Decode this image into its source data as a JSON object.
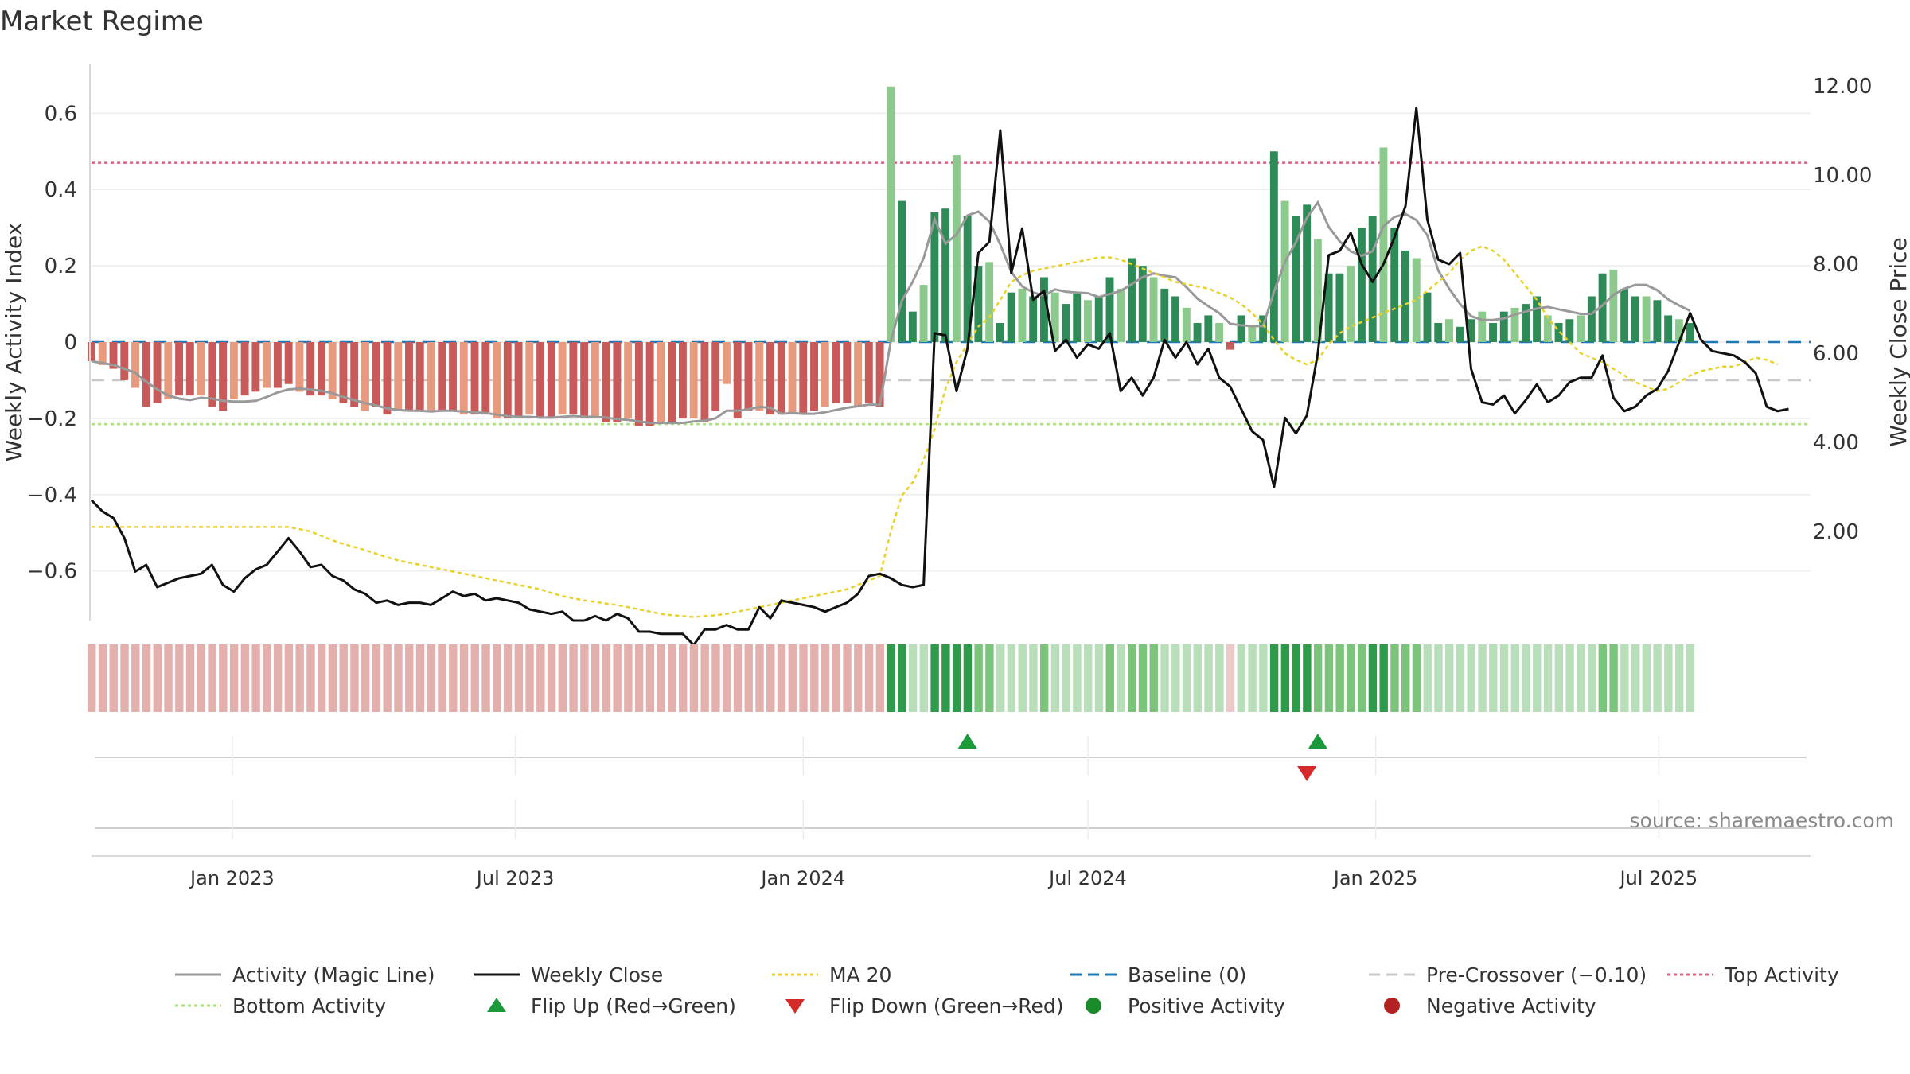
{
  "title": "Market Regime",
  "source": "source: sharemaestro.com",
  "colors": {
    "magic": "#999999",
    "close": "#111111",
    "ma": "#e8d228",
    "baseline": "#1f77b4",
    "precross": "#c8c8c8",
    "top": "#e06080",
    "bottom": "#a8e07a",
    "pos_dark": "#2e8b57",
    "pos_light": "#8cc98c",
    "neg_dark": "#c85a5a",
    "neg_light": "#e89a7e",
    "flip_up": "#1a9a3a",
    "flip_down": "#d42a2a",
    "dot_pos": "#1a8a2a",
    "dot_neg": "#b22222"
  },
  "legend": [
    {
      "label": "Activity (Magic Line)",
      "kind": "line",
      "color": "#999999",
      "dash": ""
    },
    {
      "label": "Weekly Close",
      "kind": "line",
      "color": "#111111",
      "dash": ""
    },
    {
      "label": "MA 20",
      "kind": "line",
      "color": "#e8d228",
      "dash": "4,4"
    },
    {
      "label": "Baseline (0)",
      "kind": "line",
      "color": "#1f77b4",
      "dash": "14,8"
    },
    {
      "label": "Pre-Crossover (−0.10)",
      "kind": "line",
      "color": "#c8c8c8",
      "dash": "14,8"
    },
    {
      "label": "Top Activity",
      "kind": "line",
      "color": "#e06080",
      "dash": "4,4"
    },
    {
      "label": "Bottom Activity",
      "kind": "line",
      "color": "#a8e07a",
      "dash": "4,4"
    },
    {
      "label": "Flip Up (Red→Green)",
      "kind": "tri-up",
      "color": "#1a9a3a",
      "dash": ""
    },
    {
      "label": "Flip Down (Green→Red)",
      "kind": "tri-down",
      "color": "#d42a2a",
      "dash": ""
    },
    {
      "label": "Positive Activity",
      "kind": "dot",
      "color": "#1a8a2a",
      "dash": ""
    },
    {
      "label": "Negative Activity",
      "kind": "dot",
      "color": "#b22222",
      "dash": ""
    }
  ],
  "chart_data": {
    "type": "bar",
    "title": "Market Regime",
    "ylabel": "Weekly Activity Index",
    "y2label": "Weekly Close Price",
    "ylim": [
      -0.73,
      0.73
    ],
    "y2lim": [
      0,
      12.5
    ],
    "yticks": [
      0.6,
      0.4,
      0.2,
      0,
      -0.2,
      -0.4,
      -0.6
    ],
    "ytick_labels": [
      "0.6",
      "0.4",
      "0.2",
      "0",
      "−0.2",
      "−0.4",
      "−0.6"
    ],
    "y2ticks": [
      12,
      10,
      8,
      6,
      4,
      2
    ],
    "y2tick_labels": [
      "12.00",
      "10.00",
      "8.00",
      "6.00",
      "4.00",
      "2.00"
    ],
    "x_start": "2022-10-03",
    "x_end": "2025-10-06",
    "xticks": [
      {
        "date": "2023-01-01",
        "label": "Jan 2023"
      },
      {
        "date": "2023-07-01",
        "label": "Jul 2023"
      },
      {
        "date": "2024-01-01",
        "label": "Jan 2024"
      },
      {
        "date": "2024-07-01",
        "label": "Jul 2024"
      },
      {
        "date": "2025-01-01",
        "label": "Jan 2025"
      },
      {
        "date": "2025-07-01",
        "label": "Jul 2025"
      }
    ],
    "reference_lines": {
      "top": 0.47,
      "bottom": -0.215,
      "baseline": 0,
      "precross": -0.1
    },
    "flip_up": [
      {
        "date": "2024-04-15",
        "label": "Flip Up (Red→Green)"
      },
      {
        "date": "2024-11-25",
        "label": "Flip Up (Red→Green)"
      }
    ],
    "flip_down": [
      {
        "date": "2024-11-18",
        "label": "Flip Down (Green→Red)"
      }
    ],
    "series": [
      {
        "name": "Activity (Magic Line)",
        "type": "bar",
        "x_start": "2022-10-03",
        "interval_days": 7,
        "values": [
          -0.05,
          -0.06,
          -0.07,
          -0.1,
          -0.12,
          -0.17,
          -0.16,
          -0.15,
          -0.14,
          -0.14,
          -0.14,
          -0.17,
          -0.18,
          -0.15,
          -0.14,
          -0.13,
          -0.12,
          -0.12,
          -0.11,
          -0.13,
          -0.14,
          -0.14,
          -0.15,
          -0.16,
          -0.17,
          -0.18,
          -0.17,
          -0.19,
          -0.18,
          -0.18,
          -0.18,
          -0.18,
          -0.18,
          -0.18,
          -0.19,
          -0.19,
          -0.19,
          -0.2,
          -0.2,
          -0.2,
          -0.19,
          -0.2,
          -0.2,
          -0.19,
          -0.19,
          -0.2,
          -0.2,
          -0.21,
          -0.21,
          -0.2,
          -0.22,
          -0.22,
          -0.21,
          -0.21,
          -0.2,
          -0.2,
          -0.21,
          -0.18,
          -0.11,
          -0.2,
          -0.18,
          -0.18,
          -0.19,
          -0.19,
          -0.19,
          -0.19,
          -0.18,
          -0.17,
          -0.16,
          -0.16,
          -0.17,
          -0.16,
          -0.17,
          0.67,
          0.37,
          0.08,
          0.15,
          0.34,
          0.35,
          0.49,
          0.33,
          0.2,
          0.21,
          0.05,
          0.13,
          0.14,
          0.12,
          0.17,
          0.13,
          0.1,
          0.13,
          0.11,
          0.12,
          0.17,
          0.14,
          0.22,
          0.2,
          0.17,
          0.14,
          0.12,
          0.09,
          0.05,
          0.07,
          0.05,
          -0.02,
          0.07,
          0.04,
          0.07,
          0.5,
          0.37,
          0.33,
          0.36,
          0.27,
          0.18,
          0.18,
          0.2,
          0.3,
          0.33,
          0.51,
          0.3,
          0.24,
          0.22,
          0.13,
          0.05,
          0.06,
          0.04,
          0.06,
          0.08,
          0.05,
          0.08,
          0.09,
          0.1,
          0.12,
          0.07,
          0.05,
          0.06,
          0.07,
          0.12,
          0.18,
          0.19,
          0.14,
          0.12,
          0.12,
          0.11,
          0.07,
          0.06,
          0.05
        ]
      },
      {
        "name": "Weekly Close",
        "type": "line",
        "x_start": "2022-10-03",
        "interval_days": 7,
        "values": [
          2.7,
          2.45,
          2.3,
          1.85,
          1.1,
          1.25,
          0.75,
          0.85,
          0.95,
          1.0,
          1.05,
          1.25,
          0.8,
          0.65,
          0.95,
          1.15,
          1.25,
          1.55,
          1.85,
          1.55,
          1.2,
          1.25,
          1.0,
          0.9,
          0.7,
          0.6,
          0.4,
          0.45,
          0.35,
          0.4,
          0.4,
          0.35,
          0.5,
          0.65,
          0.55,
          0.6,
          0.45,
          0.5,
          0.45,
          0.4,
          0.25,
          0.2,
          0.15,
          0.2,
          0.0,
          0.0,
          0.1,
          0.0,
          0.15,
          0.05,
          -0.25,
          -0.25,
          -0.3,
          -0.3,
          -0.3,
          -0.55,
          -0.2,
          -0.2,
          -0.1,
          -0.2,
          -0.2,
          0.3,
          0.05,
          0.45,
          0.4,
          0.35,
          0.3,
          0.2,
          0.3,
          0.4,
          0.6,
          1.0,
          1.05,
          0.95,
          0.8,
          0.75,
          0.8,
          6.45,
          6.4,
          5.15,
          6.1,
          8.25,
          8.5,
          11.0,
          7.8,
          8.8,
          7.2,
          7.4,
          6.05,
          6.3,
          5.9,
          6.2,
          6.1,
          6.45,
          5.15,
          5.45,
          5.05,
          5.45,
          6.3,
          5.9,
          6.25,
          5.75,
          6.1,
          5.45,
          5.25,
          4.75,
          4.25,
          4.05,
          3.0,
          4.55,
          4.2,
          4.6,
          6.0,
          8.2,
          8.3,
          8.7,
          8.0,
          7.6,
          8.0,
          8.6,
          9.3,
          11.5,
          9.0,
          8.1,
          8.0,
          8.25,
          5.65,
          4.9,
          4.85,
          5.05,
          4.65,
          4.95,
          5.3,
          4.9,
          5.05,
          5.35,
          5.45,
          5.45,
          5.95,
          5.0,
          4.7,
          4.8,
          5.05,
          5.2,
          5.6,
          6.25,
          6.9,
          6.3,
          6.05,
          6.0,
          5.95,
          5.8,
          5.55,
          4.8,
          4.7,
          4.75
        ]
      },
      {
        "name": "MA 20",
        "type": "line",
        "x_start": "2022-10-03",
        "interval_days": 7,
        "values": [
          2.1,
          2.1,
          2.1,
          2.1,
          2.1,
          2.1,
          2.1,
          2.1,
          2.1,
          2.1,
          2.1,
          2.1,
          2.1,
          2.1,
          2.1,
          2.1,
          2.1,
          2.1,
          2.1,
          2.05,
          2.0,
          1.9,
          1.8,
          1.72,
          1.65,
          1.58,
          1.5,
          1.42,
          1.35,
          1.3,
          1.25,
          1.2,
          1.15,
          1.1,
          1.05,
          1.0,
          0.95,
          0.9,
          0.85,
          0.8,
          0.75,
          0.7,
          0.62,
          0.55,
          0.5,
          0.45,
          0.42,
          0.38,
          0.35,
          0.3,
          0.25,
          0.2,
          0.15,
          0.12,
          0.1,
          0.08,
          0.1,
          0.12,
          0.15,
          0.2,
          0.25,
          0.3,
          0.35,
          0.4,
          0.45,
          0.5,
          0.55,
          0.6,
          0.65,
          0.7,
          0.8,
          0.9,
          1.0,
          2.0,
          2.8,
          3.1,
          3.6,
          4.3,
          5.2,
          5.8,
          6.2,
          6.6,
          6.8,
          7.2,
          7.6,
          7.75,
          7.85,
          7.9,
          7.95,
          8.0,
          8.05,
          8.1,
          8.15,
          8.15,
          8.1,
          8.0,
          7.9,
          7.8,
          7.7,
          7.6,
          7.55,
          7.5,
          7.45,
          7.35,
          7.25,
          7.1,
          6.9,
          6.65,
          6.3,
          6.0,
          5.85,
          5.75,
          5.85,
          6.2,
          6.45,
          6.6,
          6.7,
          6.8,
          6.9,
          7.0,
          7.1,
          7.2,
          7.4,
          7.6,
          7.8,
          8.1,
          8.3,
          8.4,
          8.3,
          8.1,
          7.8,
          7.5,
          7.2,
          6.8,
          6.5,
          6.25,
          6.0,
          5.9,
          5.8,
          5.65,
          5.5,
          5.35,
          5.25,
          5.15,
          5.2,
          5.35,
          5.5,
          5.6,
          5.65,
          5.7,
          5.7,
          5.8,
          5.9,
          5.85,
          5.75
        ]
      }
    ]
  }
}
